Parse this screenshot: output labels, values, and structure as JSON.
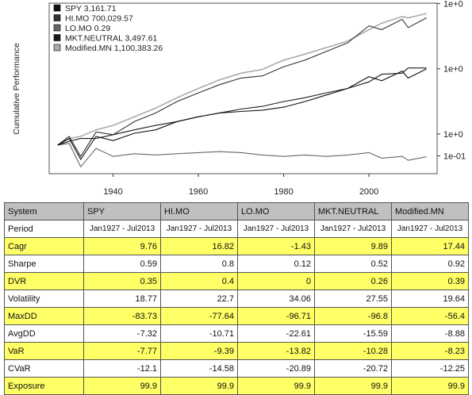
{
  "chart_data": {
    "type": "line",
    "title": "",
    "xlabel": "",
    "ylabel": "Cumulative Performance",
    "log_scale_y": true,
    "x_ticks": [
      "1940",
      "1960",
      "1980",
      "2000"
    ],
    "y_tick_labels": [
      "1e+0",
      "1e+0",
      "1e+0",
      "1e-01"
    ],
    "grid": false,
    "legend_position": "top-left",
    "series": [
      {
        "name": "SPY",
        "final_label": "3,161.71",
        "color": "#111111",
        "x": [
          1927.0,
          1929.7,
          1932.4,
          1936.0,
          1940.0,
          1945.0,
          1950.0,
          1955.0,
          1960.0,
          1965.0,
          1970.0,
          1975.0,
          1980.0,
          1985.0,
          1990.0,
          1995.0,
          2000.0,
          2003.0,
          2007.8,
          2009.2,
          2013.5
        ],
        "y": [
          1.0,
          2.0,
          0.22,
          2.5,
          1.6,
          3.5,
          5.0,
          12.0,
          20.0,
          30.0,
          35.0,
          40.0,
          55.0,
          100.0,
          200.0,
          400.0,
          1400.0,
          900.0,
          2500.0,
          1200.0,
          3161.71
        ]
      },
      {
        "name": "HI.MO",
        "final_label": "700,029.57",
        "color": "#333333",
        "x": [
          1927.0,
          1929.7,
          1932.4,
          1936.0,
          1940.0,
          1945.0,
          1950.0,
          1955.0,
          1960.0,
          1965.0,
          1970.0,
          1975.0,
          1980.0,
          1985.0,
          1990.0,
          1995.0,
          2000.0,
          2003.0,
          2007.8,
          2009.2,
          2013.5
        ],
        "y": [
          1.0,
          2.5,
          0.3,
          4.0,
          3.0,
          12.0,
          30.0,
          100.0,
          250.0,
          600.0,
          1200.0,
          1500.0,
          4000.0,
          8000.0,
          20000.0,
          50000.0,
          300000.0,
          200000.0,
          600000.0,
          250000.0,
          700029.57
        ]
      },
      {
        "name": "LO.MO",
        "final_label": "0.29",
        "color": "#666666",
        "x": [
          1927.0,
          1929.7,
          1932.4,
          1936.0,
          1940.0,
          1945.0,
          1950.0,
          1955.0,
          1960.0,
          1965.0,
          1970.0,
          1975.0,
          1980.0,
          1985.0,
          1990.0,
          1995.0,
          2000.0,
          2003.0,
          2007.8,
          2009.2,
          2013.5
        ],
        "y": [
          1.0,
          1.2,
          0.1,
          0.7,
          0.3,
          0.4,
          0.35,
          0.4,
          0.45,
          0.5,
          0.45,
          0.35,
          0.3,
          0.35,
          0.3,
          0.35,
          0.45,
          0.25,
          0.3,
          0.2,
          0.29
        ]
      },
      {
        "name": "MKT.NEUTRAL",
        "final_label": "3,497.61",
        "color": "#1a1a1a",
        "x": [
          1927.0,
          1929.7,
          1932.4,
          1936.0,
          1940.0,
          1945.0,
          1950.0,
          1955.0,
          1960.0,
          1965.0,
          1970.0,
          1975.0,
          1980.0,
          1985.0,
          1990.0,
          1995.0,
          2000.0,
          2003.0,
          2007.8,
          2009.2,
          2013.5
        ],
        "y": [
          1.0,
          1.5,
          2.0,
          2.0,
          3.0,
          5.0,
          8.0,
          12.0,
          20.0,
          30.0,
          45.0,
          60.0,
          100.0,
          150.0,
          250.0,
          400.0,
          800.0,
          1800.0,
          2000.0,
          3500.0,
          3497.61
        ]
      },
      {
        "name": "Modified.MN",
        "final_label": "1,100,383.26",
        "color": "#aaaaaa",
        "x": [
          1927.0,
          1929.7,
          1932.4,
          1936.0,
          1940.0,
          1945.0,
          1950.0,
          1955.0,
          1960.0,
          1965.0,
          1970.0,
          1975.0,
          1980.0,
          1985.0,
          1990.0,
          1995.0,
          2000.0,
          2003.0,
          2007.8,
          2009.2,
          2013.5
        ],
        "y": [
          1.0,
          2.0,
          2.5,
          5.0,
          8.0,
          20.0,
          50.0,
          150.0,
          400.0,
          1000.0,
          2000.0,
          3000.0,
          8000.0,
          15000.0,
          30000.0,
          60000.0,
          200000.0,
          400000.0,
          800000.0,
          700000.0,
          1100383.26
        ]
      }
    ],
    "table": {
      "columns": [
        "System",
        "SPY",
        "HI.MO",
        "LO.MO",
        "MKT.NEUTRAL",
        "Modified.MN"
      ],
      "rows": [
        {
          "label": "Period",
          "values": [
            "Jan1927 - Jul2013",
            "Jan1927 - Jul2013",
            "Jan1927 - Jul2013",
            "Jan1927 - Jul2013",
            "Jan1927 - Jul2013"
          ],
          "highlight": false,
          "period": true
        },
        {
          "label": "Cagr",
          "values": [
            "9.76",
            "16.82",
            "-1.43",
            "9.89",
            "17.44"
          ],
          "highlight": true
        },
        {
          "label": "Sharpe",
          "values": [
            "0.59",
            "0.8",
            "0.12",
            "0.52",
            "0.92"
          ],
          "highlight": false
        },
        {
          "label": "DVR",
          "values": [
            "0.35",
            "0.4",
            "0",
            "0.26",
            "0.39"
          ],
          "highlight": true
        },
        {
          "label": "Volatility",
          "values": [
            "18.77",
            "22.7",
            "34.06",
            "27.55",
            "19.64"
          ],
          "highlight": false
        },
        {
          "label": "MaxDD",
          "values": [
            "-83.73",
            "-77.64",
            "-96.71",
            "-96.8",
            "-56.4"
          ],
          "highlight": true
        },
        {
          "label": "AvgDD",
          "values": [
            "-7.32",
            "-10.71",
            "-22.61",
            "-15.59",
            "-8.88"
          ],
          "highlight": false
        },
        {
          "label": "VaR",
          "values": [
            "-7.77",
            "-9.39",
            "-13.82",
            "-10.28",
            "-8.23"
          ],
          "highlight": true
        },
        {
          "label": "CVaR",
          "values": [
            "-12.1",
            "-14.58",
            "-20.89",
            "-20.72",
            "-12.25"
          ],
          "highlight": false
        },
        {
          "label": "Exposure",
          "values": [
            "99.9",
            "99.9",
            "99.9",
            "99.9",
            "99.9"
          ],
          "highlight": true
        }
      ]
    }
  }
}
